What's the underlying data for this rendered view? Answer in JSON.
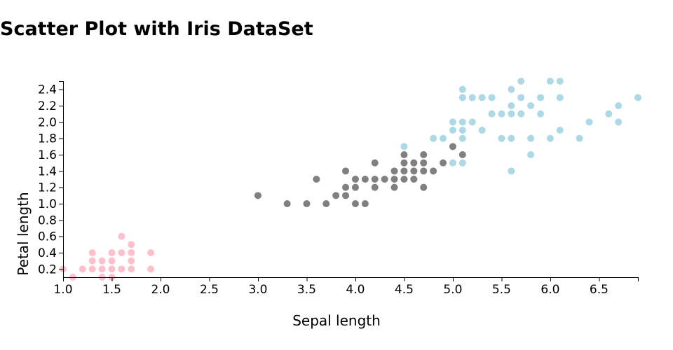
{
  "chart_data": {
    "type": "scatter",
    "title": "Scatter Plot with Iris DataSet",
    "xlabel": "Sepal length",
    "ylabel": "Petal length",
    "xlim": [
      1.0,
      6.9
    ],
    "ylim": [
      0.1,
      2.5
    ],
    "x_ticks": [
      "1.0",
      "1.5",
      "2.0",
      "2.5",
      "3.0",
      "3.5",
      "4.0",
      "4.5",
      "5.0",
      "5.5",
      "6.0",
      "6.5"
    ],
    "y_ticks": [
      "0.2",
      "0.4",
      "0.6",
      "0.8",
      "1.0",
      "1.2",
      "1.4",
      "1.6",
      "1.8",
      "2.0",
      "2.2",
      "2.4"
    ],
    "grid": false,
    "legend": "none",
    "series": [
      {
        "color": "#ffc0cb",
        "points": [
          [
            1.0,
            0.2
          ],
          [
            1.1,
            0.1
          ],
          [
            1.2,
            0.2
          ],
          [
            1.3,
            0.2
          ],
          [
            1.3,
            0.3
          ],
          [
            1.3,
            0.4
          ],
          [
            1.4,
            0.1
          ],
          [
            1.4,
            0.2
          ],
          [
            1.4,
            0.3
          ],
          [
            1.5,
            0.1
          ],
          [
            1.5,
            0.2
          ],
          [
            1.5,
            0.3
          ],
          [
            1.5,
            0.4
          ],
          [
            1.6,
            0.2
          ],
          [
            1.6,
            0.4
          ],
          [
            1.6,
            0.6
          ],
          [
            1.7,
            0.2
          ],
          [
            1.7,
            0.3
          ],
          [
            1.7,
            0.4
          ],
          [
            1.7,
            0.5
          ],
          [
            1.9,
            0.2
          ],
          [
            1.9,
            0.4
          ]
        ]
      },
      {
        "color": "#808080",
        "points": [
          [
            3.0,
            1.1
          ],
          [
            3.3,
            1.0
          ],
          [
            3.5,
            1.0
          ],
          [
            3.6,
            1.3
          ],
          [
            3.7,
            1.0
          ],
          [
            3.8,
            1.1
          ],
          [
            3.9,
            1.1
          ],
          [
            3.9,
            1.2
          ],
          [
            3.9,
            1.4
          ],
          [
            4.0,
            1.0
          ],
          [
            4.0,
            1.2
          ],
          [
            4.0,
            1.3
          ],
          [
            4.1,
            1.0
          ],
          [
            4.1,
            1.3
          ],
          [
            4.2,
            1.2
          ],
          [
            4.2,
            1.3
          ],
          [
            4.2,
            1.5
          ],
          [
            4.3,
            1.3
          ],
          [
            4.4,
            1.2
          ],
          [
            4.4,
            1.3
          ],
          [
            4.4,
            1.4
          ],
          [
            4.5,
            1.3
          ],
          [
            4.5,
            1.5
          ],
          [
            4.6,
            1.3
          ],
          [
            4.6,
            1.4
          ],
          [
            4.6,
            1.5
          ],
          [
            4.7,
            1.2
          ],
          [
            4.7,
            1.4
          ],
          [
            4.7,
            1.5
          ],
          [
            4.7,
            1.6
          ],
          [
            4.5,
            1.6
          ],
          [
            4.8,
            1.4
          ],
          [
            4.9,
            1.5
          ],
          [
            5.0,
            1.7
          ],
          [
            5.1,
            1.6
          ],
          [
            4.5,
            1.4
          ]
        ]
      },
      {
        "color": "#add8e6",
        "points": [
          [
            4.5,
            1.7
          ],
          [
            4.8,
            1.8
          ],
          [
            4.9,
            1.8
          ],
          [
            5.0,
            1.5
          ],
          [
            5.0,
            1.9
          ],
          [
            5.0,
            2.0
          ],
          [
            5.1,
            1.5
          ],
          [
            5.1,
            1.8
          ],
          [
            5.1,
            1.9
          ],
          [
            5.1,
            2.0
          ],
          [
            5.1,
            2.3
          ],
          [
            5.1,
            2.4
          ],
          [
            5.2,
            2.0
          ],
          [
            5.2,
            2.3
          ],
          [
            5.3,
            1.9
          ],
          [
            5.3,
            2.3
          ],
          [
            5.4,
            2.1
          ],
          [
            5.4,
            2.3
          ],
          [
            5.5,
            1.8
          ],
          [
            5.5,
            2.1
          ],
          [
            5.6,
            1.4
          ],
          [
            5.6,
            1.8
          ],
          [
            5.6,
            2.1
          ],
          [
            5.6,
            2.2
          ],
          [
            5.6,
            2.4
          ],
          [
            5.7,
            2.1
          ],
          [
            5.7,
            2.3
          ],
          [
            5.7,
            2.5
          ],
          [
            5.8,
            1.6
          ],
          [
            5.8,
            1.8
          ],
          [
            5.8,
            2.2
          ],
          [
            5.9,
            2.1
          ],
          [
            5.9,
            2.3
          ],
          [
            6.0,
            1.8
          ],
          [
            6.0,
            2.5
          ],
          [
            6.1,
            1.9
          ],
          [
            6.1,
            2.3
          ],
          [
            6.1,
            2.5
          ],
          [
            6.3,
            1.8
          ],
          [
            6.4,
            2.0
          ],
          [
            6.6,
            2.1
          ],
          [
            6.7,
            2.0
          ],
          [
            6.7,
            2.2
          ],
          [
            6.9,
            2.3
          ]
        ]
      }
    ]
  }
}
